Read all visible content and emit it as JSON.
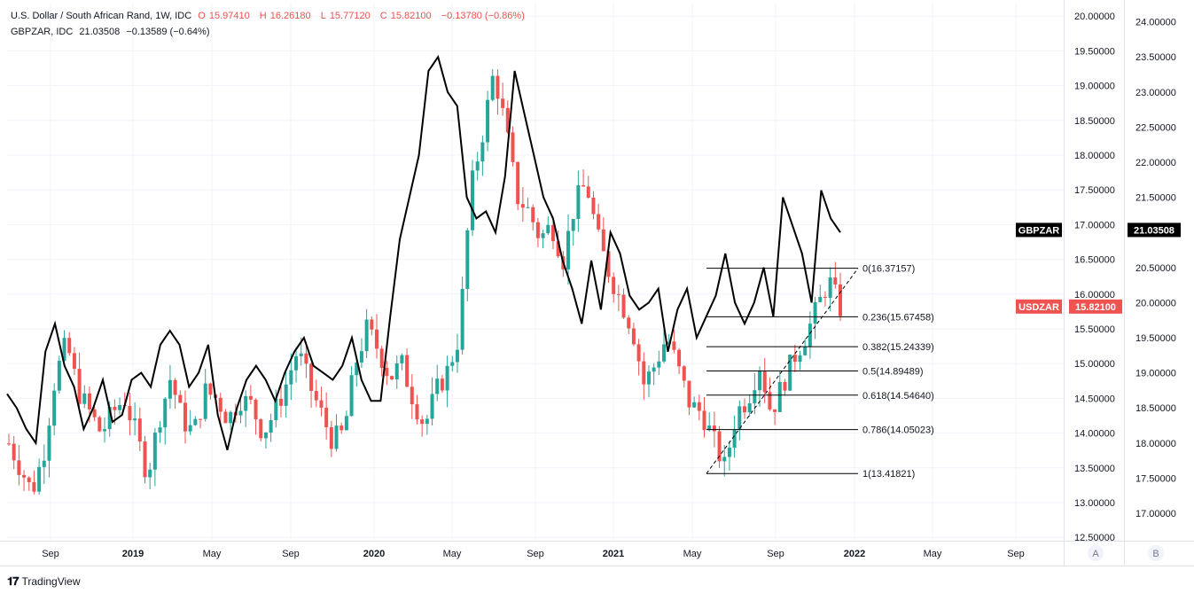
{
  "header": {
    "title": "U.S. Dollar / South African Rand, 1W, IDC",
    "o_label": "O",
    "o_value": "15.97410",
    "h_label": "H",
    "h_value": "16.26180",
    "l_label": "L",
    "l_value": "15.77120",
    "c_label": "C",
    "c_value": "15.82100",
    "change": "−0.13780 (−0.86%)"
  },
  "compare": {
    "label": "GBPZAR, IDC",
    "value": "21.03508",
    "change": "−0.13589 (−0.64%)"
  },
  "brand": {
    "name": "TradingView"
  },
  "chart_data": {
    "type": "candlestick",
    "title": "U.S. Dollar / South African Rand, 1W, IDC",
    "left_axis": {
      "ticks": [
        "12.50000",
        "13.00000",
        "13.50000",
        "14.00000",
        "14.50000",
        "15.00000",
        "15.50000",
        "16.00000",
        "16.50000",
        "17.00000",
        "17.50000",
        "18.00000",
        "18.50000",
        "19.00000",
        "19.50000",
        "20.00000"
      ],
      "range": [
        12.5,
        20.0
      ]
    },
    "right_axis": {
      "ticks": [
        "17.00000",
        "17.50000",
        "18.00000",
        "18.50000",
        "19.00000",
        "19.50000",
        "20.00000",
        "20.50000",
        "21.00000",
        "21.50000",
        "22.00000",
        "22.50000",
        "23.00000",
        "23.50000",
        "24.00000"
      ],
      "range": [
        16.5,
        24.0
      ]
    },
    "x_labels": [
      "Sep",
      "2019",
      "May",
      "Sep",
      "2020",
      "May",
      "Sep",
      "2021",
      "May",
      "Sep",
      "2022",
      "May",
      "Sep"
    ],
    "series": [
      {
        "name": "USDZAR",
        "kind": "candles",
        "color_up": "#26a69a",
        "color_down": "#ef5350",
        "anchor_closes": [
          13.85,
          13.5,
          13.15,
          13.7,
          14.8,
          15.3,
          14.6,
          14.3,
          14.0,
          14.3,
          14.5,
          14.0,
          13.4,
          14.2,
          14.8,
          14.2,
          14.0,
          14.6,
          14.5,
          14.2,
          14.5,
          14.4,
          14.0,
          14.3,
          14.7,
          15.2,
          14.7,
          14.3,
          13.9,
          14.0,
          15.0,
          15.5,
          15.2,
          14.8,
          15.0,
          14.5,
          14.1,
          14.6,
          14.9,
          15.4,
          17.5,
          18.3,
          19.2,
          18.4,
          17.4,
          17.2,
          16.8,
          17.0,
          16.5,
          17.3,
          17.6,
          16.8,
          16.3,
          15.9,
          15.5,
          14.7,
          15.0,
          15.4,
          14.9,
          14.4,
          14.3,
          13.9,
          13.5,
          14.3,
          14.5,
          15.0,
          14.3,
          14.7,
          15.1,
          15.4,
          15.8,
          16.2,
          15.8
        ],
        "last": "15.82100",
        "label": "USDZAR"
      },
      {
        "name": "GBPZAR",
        "kind": "line",
        "color": "#000000",
        "points": [
          18.7,
          18.5,
          18.2,
          18.0,
          19.3,
          19.7,
          19.1,
          18.8,
          18.2,
          18.5,
          18.9,
          18.3,
          18.4,
          18.9,
          19.0,
          18.8,
          19.4,
          19.6,
          19.4,
          18.8,
          19.0,
          19.4,
          18.4,
          17.9,
          18.5,
          18.9,
          19.1,
          18.9,
          18.6,
          19.0,
          19.3,
          19.5,
          19.1,
          19.0,
          18.9,
          19.1,
          19.5,
          18.9,
          18.6,
          18.6,
          19.8,
          20.9,
          21.5,
          22.1,
          23.3,
          23.5,
          23.0,
          22.8,
          21.5,
          21.2,
          21.3,
          21.0,
          21.8,
          23.3,
          22.7,
          22.1,
          21.5,
          21.2,
          20.6,
          20.2,
          19.7,
          20.6,
          19.9,
          21.0,
          20.7,
          20.1,
          19.9,
          20.0,
          20.2,
          19.3,
          19.9,
          20.2,
          19.5,
          19.8,
          20.1,
          20.7,
          20.0,
          19.7,
          20.0,
          20.5,
          19.8,
          21.5,
          21.1,
          20.7,
          20.0,
          21.6,
          21.2,
          21.0
        ],
        "last": "21.03508",
        "label": "GBPZAR"
      }
    ],
    "fibonacci": [
      {
        "level": "0",
        "value": "16.37157",
        "label": "0(16.37157)"
      },
      {
        "level": "0.236",
        "value": "15.67458",
        "label": "0.236(15.67458)"
      },
      {
        "level": "0.382",
        "value": "15.24339",
        "label": "0.382(15.24339)"
      },
      {
        "level": "0.5",
        "value": "14.89489",
        "label": "0.5(14.89489)"
      },
      {
        "level": "0.618",
        "value": "14.54640",
        "label": "0.618(14.54640)"
      },
      {
        "level": "0.786",
        "value": "14.05023",
        "label": "0.786(14.05023)"
      },
      {
        "level": "1",
        "value": "13.41821",
        "label": "1(13.41821)"
      }
    ],
    "axis_buttons": [
      "A",
      "B"
    ]
  }
}
